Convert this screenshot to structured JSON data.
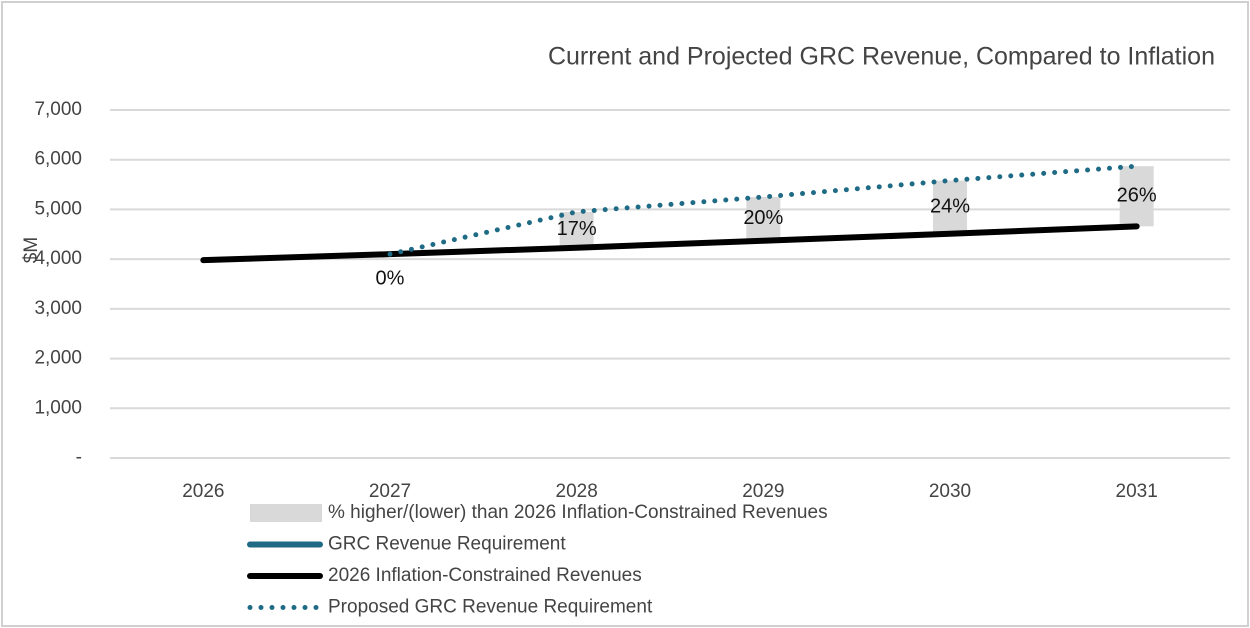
{
  "chart_data": {
    "type": "line",
    "title": "Current and Projected GRC Revenue, Compared to Inﬂation",
    "y_label": "$M",
    "categories": [
      "2026",
      "2027",
      "2028",
      "2029",
      "2030",
      "2031"
    ],
    "ylim": [
      0,
      7000
    ],
    "yticks": [
      {
        "value": 0,
        "label": "-"
      },
      {
        "value": 1000,
        "label": "1,000"
      },
      {
        "value": 2000,
        "label": "2,000"
      },
      {
        "value": 3000,
        "label": "3,000"
      },
      {
        "value": 4000,
        "label": "4,000"
      },
      {
        "value": 5000,
        "label": "5,000"
      },
      {
        "value": 6000,
        "label": "6,000"
      },
      {
        "value": 7000,
        "label": "7,000"
      }
    ],
    "grid": true,
    "series": [
      {
        "name": "% higher/(lower) than 2026 Inﬂation-Constrained Revenues",
        "kind": "range-bar",
        "color": "#d9d9d9",
        "values": [
          null,
          0,
          17,
          20,
          24,
          26
        ],
        "value_labels": [
          null,
          "0%",
          "17%",
          "20%",
          "24%",
          "26%"
        ]
      },
      {
        "name": "GRC Revenue Requirement",
        "kind": "solid",
        "color": "#1f6b85",
        "values": [
          null,
          null,
          null,
          null,
          null,
          null
        ]
      },
      {
        "name": "2026 Inﬂation-Constrained Revenues",
        "kind": "solid",
        "color": "#000000",
        "values": [
          3980,
          4100,
          4230,
          4370,
          4510,
          4660
        ]
      },
      {
        "name": "Proposed GRC Revenue Requirement",
        "kind": "dotted",
        "color": "#1f6b85",
        "values": [
          null,
          4100,
          4950,
          5250,
          5580,
          5870
        ]
      }
    ]
  }
}
